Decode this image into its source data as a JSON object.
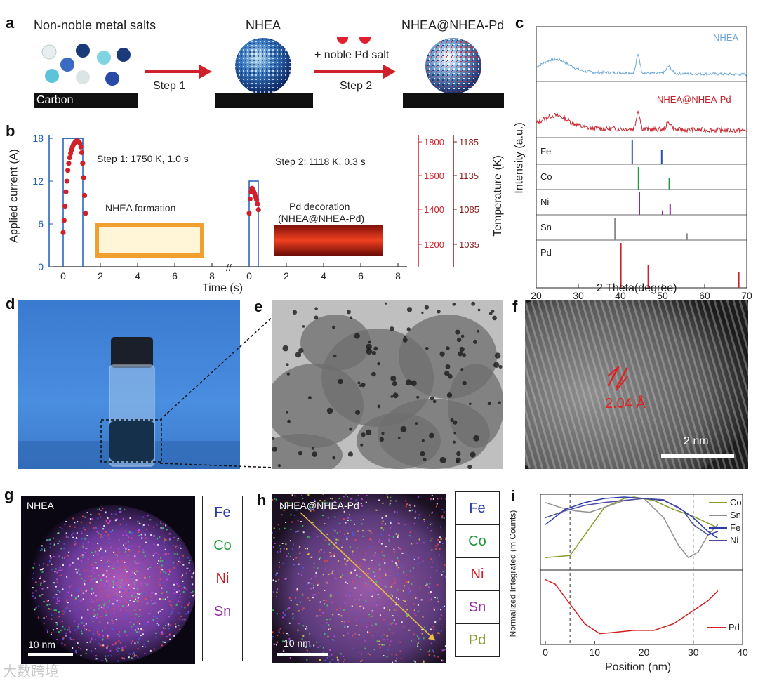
{
  "panels": {
    "a": {
      "label": "a",
      "title_salts": "Non-noble metal salts",
      "substrate": "Carbon",
      "step1": "Step 1",
      "title_nhea": "NHEA",
      "pd_salt": "+ noble Pd salt",
      "step2": "Step 2",
      "title_product": "NHEA@NHEA-Pd"
    },
    "b": {
      "label": "b",
      "step1_text": "Step 1: 1750 K, 1.0 s",
      "step2_text": "Step 2: 1118 K, 0.3 s",
      "inset1": "NHEA formation",
      "inset2_line1": "Pd decoration",
      "inset2_line2": "(NHEA@NHEA-Pd)",
      "break_mark": "//",
      "xlabel": "Time (s)",
      "ylabel_left": "Applied current (A)",
      "ylabel_right": "Temperature (K)",
      "xticks": [
        "0",
        "2",
        "4",
        "6",
        "8",
        "0",
        "2",
        "4",
        "6",
        "8"
      ],
      "yticks_left": [
        "0",
        "6",
        "12",
        "18"
      ],
      "yticks_right1": [
        "1200",
        "1400",
        "1600",
        "1800"
      ],
      "yticks_right2": [
        "1035",
        "1085",
        "1135",
        "1185"
      ],
      "colors": {
        "current": "#1f5fb5",
        "temp": "#d0202a",
        "temp2": "#8b1a1a"
      }
    },
    "c": {
      "label": "c",
      "series": [
        "NHEA",
        "NHEA@NHEA-Pd"
      ],
      "refs": [
        "Fe",
        "Co",
        "Ni",
        "Sn",
        "Pd"
      ],
      "xlabel": "2 Theta(degree)",
      "ylabel": "Intensity (a.u.)",
      "xticks": [
        "20",
        "30",
        "40",
        "50",
        "60",
        "70"
      ],
      "colors": {
        "nhea": "#6aa6d8",
        "pd": "#c8202a",
        "Fe": "#2a4fa8",
        "Co": "#1f9a3a",
        "Ni": "#8a2a9a",
        "Sn": "#888888",
        "Pd": "#d0202a"
      }
    },
    "d": {
      "label": "d"
    },
    "e": {
      "label": "e"
    },
    "f": {
      "label": "f",
      "spacing": "2.04 Å",
      "scale": "2 nm"
    },
    "g": {
      "label": "g",
      "title": "NHEA",
      "scale": "10 nm",
      "legend": [
        "Fe",
        "Co",
        "Ni",
        "Sn",
        ""
      ]
    },
    "h": {
      "label": "h",
      "title": "NHEA@NHEA-Pd",
      "scale": "10 nm",
      "legend": [
        "Fe",
        "Co",
        "Ni",
        "Sn",
        "Pd"
      ]
    },
    "i": {
      "label": "i",
      "legend_top": [
        "Co",
        "Sn",
        "Fe",
        "Ni"
      ],
      "legend_bottom": "Pd",
      "xlabel": "Position (nm)",
      "ylabel": "Normalized Integrated (m Counts)",
      "xticks": [
        "0",
        "10",
        "20",
        "30",
        "40"
      ],
      "colors": {
        "Co": "#8a9a2a",
        "Sn": "#909090",
        "Fe": "#2a3aa8",
        "Ni": "#4a4aa0",
        "Pd": "#d02020"
      }
    },
    "watermark": "大数跨境"
  },
  "chart_data": [
    {
      "type": "scatter",
      "title": "",
      "xlabel": "Time (s)",
      "ylabel": "Applied current (A)",
      "y2label": "Temperature (K)",
      "ylim": [
        0,
        18.5
      ],
      "series": [
        {
          "name": "",
          "x": [
            0,
            0.05,
            0.1,
            0.15,
            0.2,
            0.25,
            0.3,
            0.35,
            0.4,
            0.45,
            0.5,
            0.55,
            0.6,
            0.65,
            0.7,
            0.75,
            0.8,
            0.85,
            0.9,
            0.95,
            1.0,
            1.05,
            1.1,
            1.15,
            1.2
          ],
          "y": [
            4.8,
            6.5,
            8.5,
            10.5,
            12.0,
            13.5,
            14.5,
            15.3,
            15.9,
            16.4,
            16.8,
            17.1,
            17.3,
            17.5,
            17.6,
            17.6,
            17.6,
            17.5,
            17.3,
            16.8,
            16.0,
            14.5,
            12.5,
            10.0,
            7.5
          ]
        },
        {
          "name": "",
          "x": [
            0,
            0.05,
            0.1,
            0.15,
            0.2,
            0.25,
            0.3,
            0.35,
            0.4,
            0.45,
            0.5
          ],
          "y": [
            7.5,
            9.5,
            10.5,
            11.0,
            10.8,
            10.5,
            10.2,
            9.8,
            9.4,
            8.8,
            8.0
          ]
        }
      ]
    },
    {
      "type": "line",
      "title": "",
      "xlabel": "2 Theta(degree)",
      "ylabel": "Intensity (a.u.)",
      "xlim": [
        20,
        70
      ],
      "series": [
        {
          "name": "NHEA",
          "peaks": [
            24.5,
            44.2,
            51.5
          ]
        },
        {
          "name": "NHEA@NHEA-Pd",
          "peaks": [
            24.5,
            44.2,
            51.5
          ]
        },
        {
          "name": "Fe",
          "sticks": [
            [
              42.8,
              1.0
            ],
            [
              49.8,
              0.6
            ]
          ]
        },
        {
          "name": "Co",
          "sticks": [
            [
              44.3,
              1.0
            ],
            [
              51.6,
              0.5
            ]
          ]
        },
        {
          "name": "Ni",
          "sticks": [
            [
              44.5,
              1.0
            ],
            [
              51.8,
              0.5
            ],
            [
              50.0,
              0.2
            ]
          ]
        },
        {
          "name": "Sn",
          "sticks": [
            [
              38.7,
              1.0
            ],
            [
              55.8,
              0.3
            ]
          ]
        },
        {
          "name": "Pd",
          "sticks": [
            [
              40.1,
              1.0
            ],
            [
              46.6,
              0.5
            ],
            [
              68.1,
              0.35
            ]
          ]
        }
      ]
    },
    {
      "type": "line",
      "title": "",
      "xlabel": "Position (nm)",
      "ylabel": "Normalized Integrated (m Counts)",
      "xlim": [
        -1,
        40
      ],
      "series": [
        {
          "name": "Co",
          "x": [
            0,
            5,
            8,
            12,
            16,
            18,
            22,
            26,
            30,
            33,
            35
          ],
          "y": [
            0.12,
            0.15,
            0.45,
            0.85,
            0.98,
            1.0,
            0.95,
            0.82,
            0.72,
            0.62,
            0.55
          ]
        },
        {
          "name": "Sn",
          "x": [
            0,
            3,
            6,
            9,
            12,
            16,
            20,
            24,
            27,
            29,
            31,
            33,
            35
          ],
          "y": [
            0.92,
            0.85,
            0.8,
            0.78,
            0.85,
            0.95,
            0.98,
            0.7,
            0.3,
            0.12,
            0.2,
            0.45,
            0.6
          ]
        },
        {
          "name": "Fe",
          "x": [
            0,
            4,
            8,
            12,
            16,
            20,
            24,
            27,
            30,
            33,
            35
          ],
          "y": [
            0.6,
            0.82,
            0.92,
            0.98,
            1.0,
            0.98,
            0.95,
            0.85,
            0.7,
            0.5,
            0.4
          ]
        },
        {
          "name": "Ni",
          "x": [
            0,
            4,
            8,
            12,
            16,
            20,
            24,
            28,
            30,
            33,
            35
          ],
          "y": [
            0.7,
            0.8,
            0.88,
            0.92,
            0.95,
            0.98,
            0.96,
            0.8,
            0.6,
            0.45,
            0.5
          ]
        },
        {
          "name": "Pd",
          "x": [
            0,
            2,
            5,
            8,
            11,
            14,
            18,
            22,
            26,
            30,
            33,
            35
          ],
          "y": [
            0.92,
            0.85,
            0.55,
            0.25,
            0.1,
            0.12,
            0.15,
            0.15,
            0.25,
            0.45,
            0.6,
            0.75
          ]
        }
      ]
    }
  ]
}
